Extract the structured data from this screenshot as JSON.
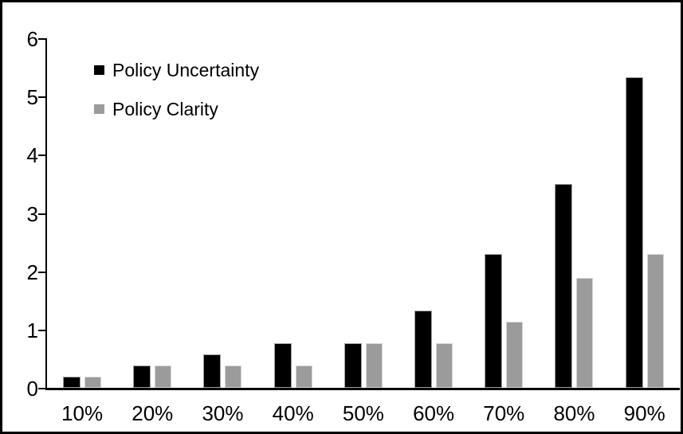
{
  "chart_data": {
    "type": "bar",
    "title": "",
    "xlabel": "",
    "ylabel": "",
    "categories": [
      "10%",
      "20%",
      "30%",
      "40%",
      "50%",
      "60%",
      "70%",
      "80%",
      "90%"
    ],
    "series": [
      {
        "name": "Policy Uncertainty",
        "color": "#000000",
        "values": [
          0.19,
          0.38,
          0.57,
          0.76,
          0.77,
          1.33,
          2.3,
          3.5,
          5.33
        ]
      },
      {
        "name": "Policy Clarity",
        "color": "#9b9b9b",
        "values": [
          0.19,
          0.38,
          0.38,
          0.38,
          0.76,
          0.76,
          1.14,
          1.89,
          2.3
        ]
      }
    ],
    "ylim": [
      0,
      6
    ],
    "yticks": [
      "0",
      "1",
      "2",
      "3",
      "4",
      "5",
      "6"
    ],
    "grid": false,
    "legend_position": "inside-top-left",
    "frame_color": "#000000",
    "background_color": "#ffffff"
  }
}
